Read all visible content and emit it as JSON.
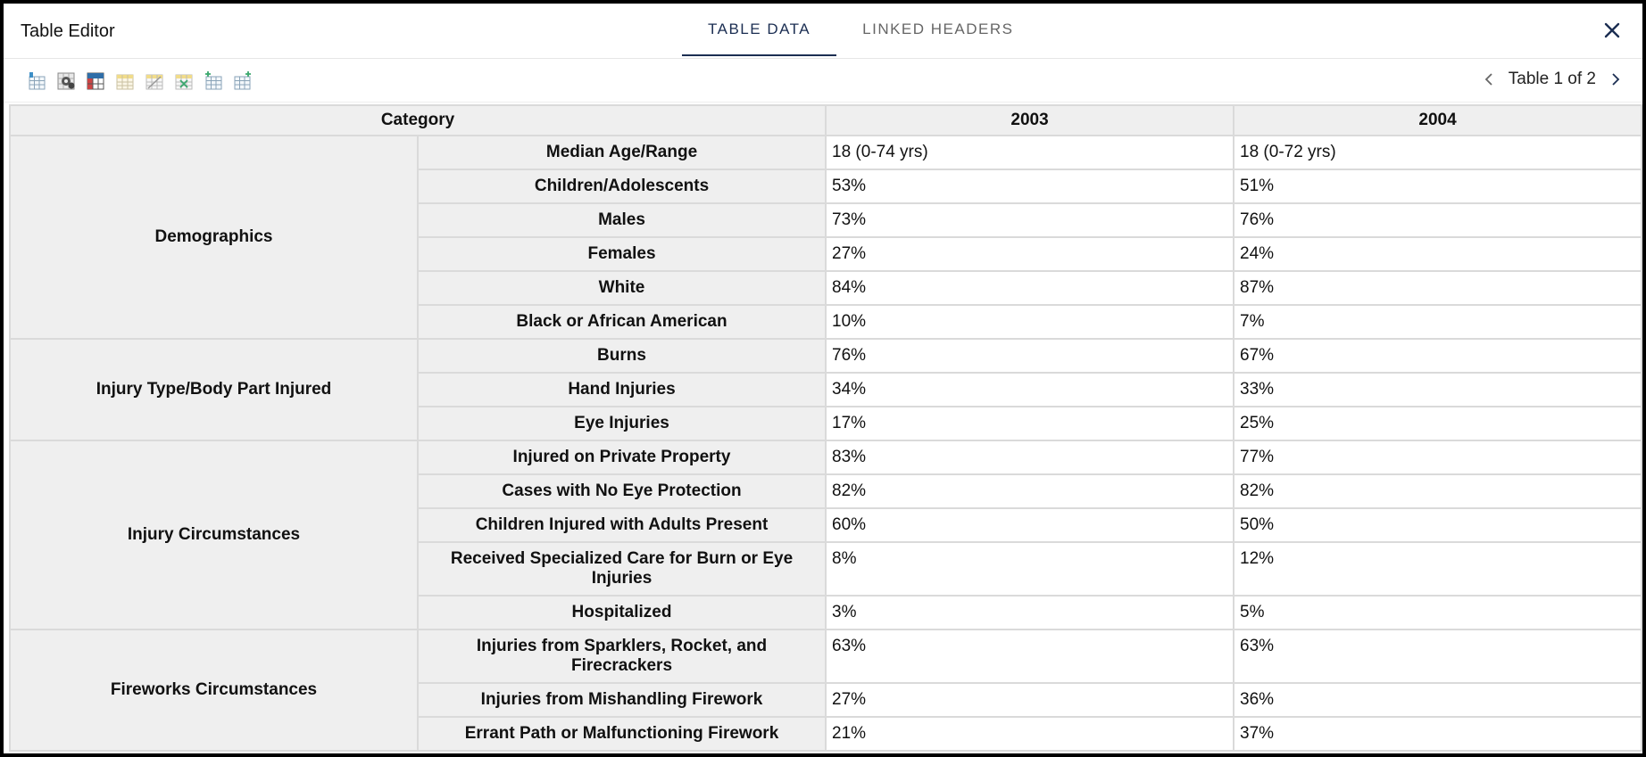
{
  "window": {
    "title": "Table Editor"
  },
  "tabs": [
    {
      "label": "TABLE DATA",
      "active": true
    },
    {
      "label": "LINKED HEADERS",
      "active": false
    }
  ],
  "toolbar": {
    "icons": [
      "insert-row-icon",
      "table-settings-icon",
      "header-cells-icon",
      "merge-columns-icon",
      "split-cells-icon",
      "highlight-cells-icon",
      "add-row-icon",
      "add-column-icon"
    ]
  },
  "pager": {
    "label": "Table 1 of 2"
  },
  "table": {
    "headers": [
      "Category",
      "2003",
      "2004"
    ],
    "groups": [
      {
        "category": "Demographics",
        "rows": [
          {
            "label": "Median Age/Range",
            "v2003": "18 (0-74 yrs)",
            "v2004": "18 (0-72 yrs)"
          },
          {
            "label": "Children/Adolescents",
            "v2003": "53%",
            "v2004": "51%"
          },
          {
            "label": "Males",
            "v2003": "73%",
            "v2004": "76%"
          },
          {
            "label": "Females",
            "v2003": "27%",
            "v2004": "24%"
          },
          {
            "label": "White",
            "v2003": "84%",
            "v2004": "87%"
          },
          {
            "label": "Black or African American",
            "v2003": "10%",
            "v2004": "7%"
          }
        ]
      },
      {
        "category": "Injury Type/Body Part Injured",
        "rows": [
          {
            "label": "Burns",
            "v2003": "76%",
            "v2004": "67%"
          },
          {
            "label": "Hand Injuries",
            "v2003": "34%",
            "v2004": "33%"
          },
          {
            "label": "Eye Injuries",
            "v2003": "17%",
            "v2004": "25%"
          }
        ]
      },
      {
        "category": "Injury Circumstances",
        "rows": [
          {
            "label": "Injured on Private Property",
            "v2003": "83%",
            "v2004": "77%"
          },
          {
            "label": "Cases with No Eye Protection",
            "v2003": "82%",
            "v2004": "82%"
          },
          {
            "label": "Children Injured with Adults Present",
            "v2003": "60%",
            "v2004": "50%"
          },
          {
            "label": "Received Specialized Care for Burn or Eye Injuries",
            "v2003": "8%",
            "v2004": "12%"
          },
          {
            "label": "Hospitalized",
            "v2003": "3%",
            "v2004": "5%"
          }
        ]
      },
      {
        "category": "Fireworks Circumstances",
        "rows": [
          {
            "label": "Injuries from Sparklers, Rocket, and Firecrackers",
            "v2003": "63%",
            "v2004": "63%"
          },
          {
            "label": "Injuries from Mishandling Firework",
            "v2003": "27%",
            "v2004": "36%"
          },
          {
            "label": "Errant Path or Malfunctioning Firework",
            "v2003": "21%",
            "v2004": "37%"
          }
        ]
      }
    ]
  },
  "colors": {
    "tab_active": "#1b2e52",
    "header_bg": "#efefef",
    "border": "#dadada"
  }
}
